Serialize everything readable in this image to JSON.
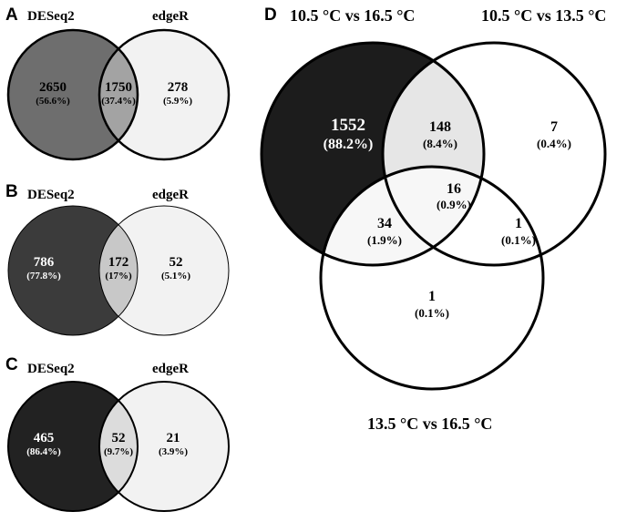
{
  "panels": {
    "A": {
      "letter": "A",
      "left_label": "DESeq2",
      "right_label": "edgeR",
      "left_only": {
        "count": "2650",
        "pct": "(56.6%)"
      },
      "overlap": {
        "count": "1750",
        "pct": "(37.4%)"
      },
      "right_only": {
        "count": "278",
        "pct": "(5.9%)"
      },
      "colors": {
        "left": "#6e6e6e",
        "overlap": "#a3a3a3",
        "right": "#f2f2f2"
      }
    },
    "B": {
      "letter": "B",
      "left_label": "DESeq2",
      "right_label": "edgeR",
      "left_only": {
        "count": "786",
        "pct": "(77.8%)"
      },
      "overlap": {
        "count": "172",
        "pct": "(17%)"
      },
      "right_only": {
        "count": "52",
        "pct": "(5.1%)"
      },
      "colors": {
        "left": "#3b3b3b",
        "overlap": "#c8c8c8",
        "right": "#f2f2f2"
      }
    },
    "C": {
      "letter": "C",
      "left_label": "DESeq2",
      "right_label": "edgeR",
      "left_only": {
        "count": "465",
        "pct": "(86.4%)"
      },
      "overlap": {
        "count": "52",
        "pct": "(9.7%)"
      },
      "right_only": {
        "count": "21",
        "pct": "(3.9%)"
      },
      "colors": {
        "left": "#222222",
        "overlap": "#dcdcdc",
        "right": "#f2f2f2"
      }
    },
    "D": {
      "letter": "D",
      "label_a": "10.5 °C vs 16.5 °C",
      "label_b": "10.5 °C vs 13.5 °C",
      "label_c": "13.5 °C vs 16.5 °C",
      "a_only": {
        "count": "1552",
        "pct": "(88.2%)"
      },
      "ab": {
        "count": "148",
        "pct": "(8.4%)"
      },
      "b_only": {
        "count": "7",
        "pct": "(0.4%)"
      },
      "abc": {
        "count": "16",
        "pct": "(0.9%)"
      },
      "ac": {
        "count": "34",
        "pct": "(1.9%)"
      },
      "bc": {
        "count": "1",
        "pct": "(0.1%)"
      },
      "c_only": {
        "count": "1",
        "pct": "(0.1%)"
      },
      "colors": {
        "a": "#1c1c1c",
        "ab": "#e6e6e6",
        "abc": "#f7f7f7",
        "ac": "#f7f7f7",
        "white": "#ffffff"
      }
    }
  }
}
